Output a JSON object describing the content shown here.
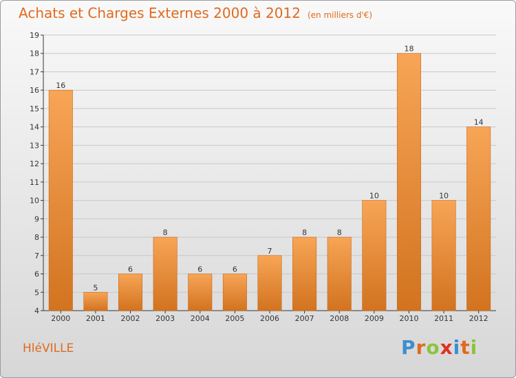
{
  "header": {
    "title": "Achats et Charges Externes 2000 à 2012",
    "subtitle": "(en milliers d'€)"
  },
  "footer": {
    "commune": "HléVILLE",
    "logo_letters": [
      "P",
      "r",
      "o",
      "x",
      "i",
      "t",
      "i"
    ],
    "logo_colors": [
      "#3a8fd0",
      "#e06a1e",
      "#8cc43c",
      "#e0301e",
      "#3a8fd0",
      "#e06a1e",
      "#8cc43c"
    ]
  },
  "colors": {
    "bar_top": "#f7a556",
    "bar_bottom": "#d2731f",
    "axis": "#333333",
    "grid": "#c8c8c8"
  },
  "chart_data": {
    "type": "bar",
    "categories": [
      "2000",
      "2001",
      "2002",
      "2003",
      "2004",
      "2005",
      "2006",
      "2007",
      "2008",
      "2009",
      "2010",
      "2011",
      "2012"
    ],
    "values": [
      16,
      5,
      6,
      8,
      6,
      6,
      7,
      8,
      8,
      10,
      18,
      10,
      14
    ],
    "title": "Achats et Charges Externes 2000 à 2012",
    "subtitle": "(en milliers d'€)",
    "ylim": [
      4,
      19
    ],
    "yticks": [
      4,
      5,
      6,
      7,
      8,
      9,
      10,
      11,
      12,
      13,
      14,
      15,
      16,
      17,
      18,
      19
    ],
    "grid": true,
    "data_labels": true
  }
}
